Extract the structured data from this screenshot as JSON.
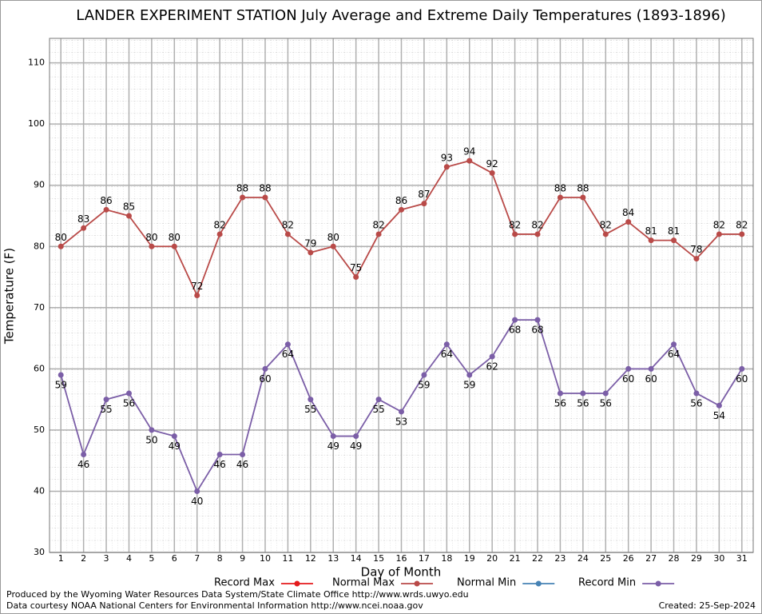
{
  "chart_data": {
    "type": "line",
    "title": "LANDER EXPERIMENT STATION July Average and Extreme Daily Temperatures (1893-1896)",
    "xlabel": "Day of Month",
    "ylabel": "Temperature (F)",
    "x": [
      1,
      2,
      3,
      4,
      5,
      6,
      7,
      8,
      9,
      10,
      11,
      12,
      13,
      14,
      15,
      16,
      17,
      18,
      19,
      20,
      21,
      22,
      23,
      24,
      25,
      26,
      27,
      28,
      29,
      30,
      31
    ],
    "xlim": [
      0.5,
      31.5
    ],
    "xticks": [
      1,
      2,
      3,
      4,
      5,
      6,
      7,
      8,
      9,
      10,
      11,
      12,
      13,
      14,
      15,
      16,
      17,
      18,
      19,
      20,
      21,
      22,
      23,
      24,
      25,
      26,
      27,
      28,
      29,
      30,
      31
    ],
    "ylim": [
      30,
      114
    ],
    "yticks": [
      30,
      40,
      50,
      60,
      70,
      80,
      90,
      100,
      110
    ],
    "grid": true,
    "legend": "bottom",
    "series": [
      {
        "name": "Record Max",
        "color": "#e41a1c",
        "values": [
          null,
          null,
          null,
          null,
          null,
          null,
          null,
          null,
          null,
          null,
          null,
          null,
          null,
          null,
          null,
          null,
          null,
          null,
          null,
          null,
          null,
          null,
          null,
          null,
          null,
          null,
          null,
          null,
          null,
          null,
          null
        ]
      },
      {
        "name": "Normal Max",
        "color": "#b94a48",
        "values": [
          80,
          83,
          86,
          85,
          80,
          80,
          72,
          82,
          88,
          88,
          82,
          79,
          80,
          75,
          82,
          86,
          87,
          93,
          94,
          92,
          82,
          82,
          88,
          88,
          82,
          84,
          81,
          81,
          78,
          82,
          82
        ]
      },
      {
        "name": "Normal Min",
        "color": "#4682b4",
        "values": [
          null,
          null,
          null,
          null,
          null,
          null,
          null,
          null,
          null,
          null,
          null,
          null,
          null,
          null,
          null,
          null,
          null,
          null,
          null,
          null,
          null,
          null,
          null,
          null,
          null,
          null,
          null,
          null,
          null,
          null,
          null
        ]
      },
      {
        "name": "Record Min",
        "color": "#7b5ea7",
        "values": [
          59,
          46,
          55,
          56,
          50,
          49,
          40,
          46,
          46,
          60,
          64,
          55,
          49,
          49,
          55,
          53,
          59,
          64,
          59,
          62,
          68,
          68,
          56,
          56,
          56,
          60,
          60,
          64,
          56,
          54,
          60
        ]
      }
    ],
    "footer": [
      "Produced by the Wyoming Water Resources Data System/State Climate Office http://www.wrds.uwyo.edu",
      "Data courtesy NOAA National Centers for Environmental Information http://www.ncei.noaa.gov"
    ],
    "created": "Created:  25-Sep-2024"
  }
}
